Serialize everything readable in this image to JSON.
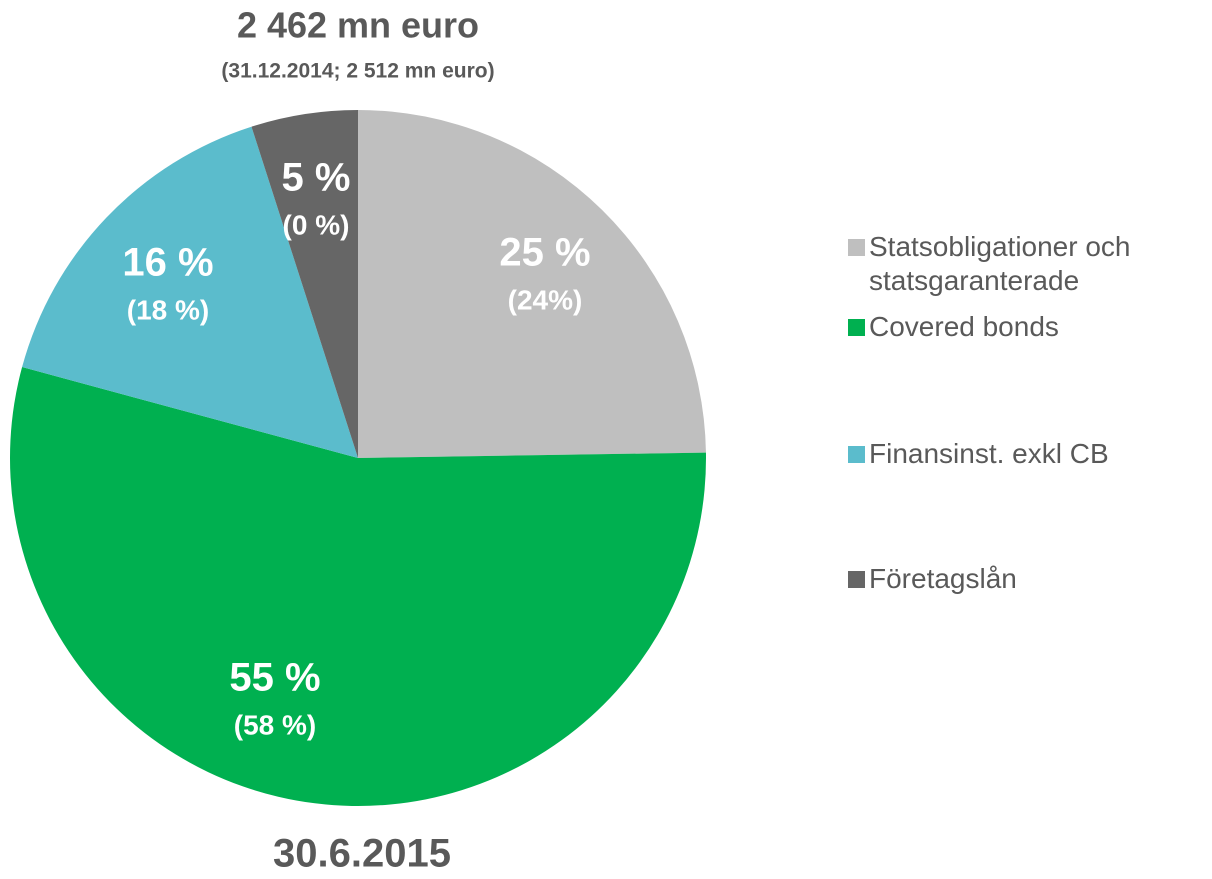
{
  "chart_data": {
    "type": "pie",
    "title": "2 462  mn euro",
    "subtitle": "(31.12.2014; 2 512 mn euro)",
    "footer": "30.6.2015",
    "categories": [
      "Statsobligationer och statsgaranterade",
      "Covered bonds",
      "Finansinst. exkl CB",
      "Företagslån"
    ],
    "values": [
      25,
      55,
      16,
      5
    ],
    "value_labels": [
      "25 %",
      "55 %",
      "16 %",
      "5 %"
    ],
    "prior_labels": [
      "(24%)",
      "(58 %)",
      "(18 %)",
      "(0 %)"
    ],
    "colors": [
      "#bfbfbf",
      "#00b050",
      "#5bbccc",
      "#666666"
    ],
    "legend": "right"
  }
}
